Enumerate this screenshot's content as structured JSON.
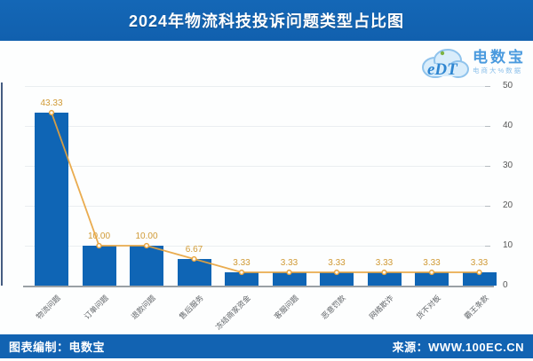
{
  "header": {
    "title": "2024年物流科技投诉问题类型占比图",
    "bar_color": "#1263b2"
  },
  "logo": {
    "icon": "edt-cloud-icon",
    "badge_text": "eDT",
    "name": "电数宝",
    "tagline": "电商大%数据"
  },
  "chart_data": {
    "type": "bar",
    "title": "2024年物流科技投诉问题类型占比图",
    "categories": [
      "物流问题",
      "订单问题",
      "退款问题",
      "售后服务",
      "冻结商家资金",
      "客服问题",
      "恶意罚款",
      "网络欺诈",
      "货不对板",
      "霸王条款"
    ],
    "values": [
      43.33,
      10.0,
      10.0,
      6.67,
      3.33,
      3.33,
      3.33,
      3.33,
      3.33,
      3.33
    ],
    "value_labels": [
      "43.33",
      "10.00",
      "10.00",
      "6.67",
      "3.33",
      "3.33",
      "3.33",
      "3.33",
      "3.33",
      "3.33"
    ],
    "overlay_line": true,
    "xlabel": "",
    "ylabel": "",
    "ylim": [
      0,
      50
    ],
    "yticks": [
      0,
      10,
      20,
      30,
      40,
      50
    ],
    "y_axis_position": "right",
    "grid": true,
    "bar_color": "#0f65b5",
    "line_color": "#e8a33c",
    "marker_fill": "#fdf6e8",
    "value_label_color": "#d09a35"
  },
  "footer": {
    "credit": "图表编制：电数宝",
    "source": "来源：WWW.100EC.CN"
  }
}
